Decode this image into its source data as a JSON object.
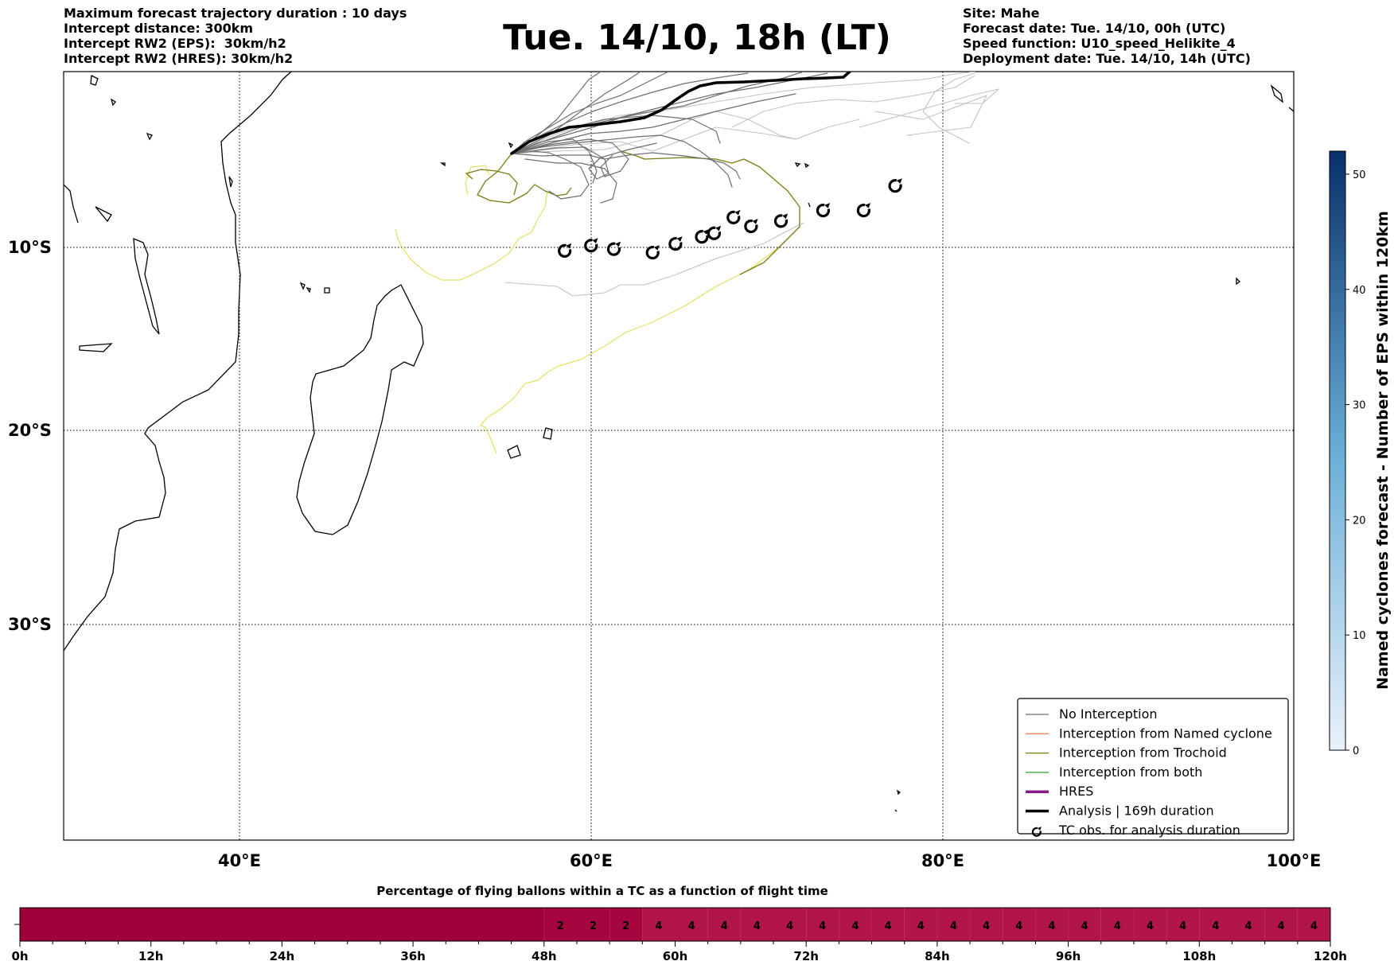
{
  "header_left": {
    "line1": "Maximum forecast trajectory duration : 10 days",
    "line2": "Intercept distance: 300km",
    "line3": "Intercept RW2 (EPS):  30km/h2",
    "line4": "Intercept RW2 (HRES): 30km/h2"
  },
  "title": "Tue. 14/10, 18h (LT)",
  "header_right": {
    "site": "Site: Mahe",
    "forecast_date": "Forecast date: Tue. 14/10, 00h (UTC)",
    "speed_function": "Speed function: U10_speed_Helikite_4",
    "deployment_date": "Deployment date: Tue. 14/10, 14h (UTC)"
  },
  "map": {
    "lon_labels": [
      "40°E",
      "60°E",
      "80°E",
      "100°E"
    ],
    "lat_labels": [
      "10°S",
      "20°S",
      "30°S"
    ],
    "colors": {
      "no_interception": "#6e6e6e",
      "eps_faint": "#c2c2c2",
      "named_cyclone": "#ff6a33",
      "trochoid": "#7a7a12",
      "trochoid_faint": "#e6e060",
      "both": "#2ca02c",
      "hres": "#8b1a8b",
      "analysis": "#000000"
    }
  },
  "tc_obs": [
    {
      "lon": 58.5,
      "lat": -10.2
    },
    {
      "lon": 60.0,
      "lat": -9.9
    },
    {
      "lon": 61.3,
      "lat": -10.1
    },
    {
      "lon": 63.5,
      "lat": -10.3
    },
    {
      "lon": 64.8,
      "lat": -9.8
    },
    {
      "lon": 66.3,
      "lat": -9.4
    },
    {
      "lon": 67.0,
      "lat": -9.2
    },
    {
      "lon": 68.1,
      "lat": -8.3
    },
    {
      "lon": 69.1,
      "lat": -8.8
    },
    {
      "lon": 70.8,
      "lat": -8.5
    },
    {
      "lon": 73.2,
      "lat": -7.9
    },
    {
      "lon": 75.5,
      "lat": -7.9
    },
    {
      "lon": 77.3,
      "lat": -6.5
    }
  ],
  "legend": {
    "items": [
      {
        "label": "No Interception",
        "kind": "line",
        "color": "#6e6e6e",
        "width": 1.2
      },
      {
        "label": "Interception from Named cyclone",
        "kind": "line",
        "color": "#ff6a33",
        "width": 1.2
      },
      {
        "label": "Interception from Trochoid",
        "kind": "line",
        "color": "#7a7a12",
        "width": 1.2
      },
      {
        "label": "Interception from both",
        "kind": "line",
        "color": "#2ca02c",
        "width": 1.2
      },
      {
        "label": "HRES",
        "kind": "line",
        "color": "#8b1a8b",
        "width": 3.5
      },
      {
        "label": "Analysis | 169h duration",
        "kind": "line",
        "color": "#000000",
        "width": 3.5
      },
      {
        "label": "TC obs. for analysis duration",
        "kind": "marker",
        "color": "#000000",
        "width": 1
      }
    ]
  },
  "colorbar": {
    "label": "Named cyclones forecast - Number of EPS within 120km",
    "min": 0,
    "max": 52,
    "ticks": [
      0,
      10,
      20,
      30,
      40,
      50
    ],
    "color_low": "#e9f1fb",
    "color_high": "#08306b"
  },
  "timeline": {
    "title": "Percentage of flying ballons within a TC as a function of flight time",
    "hours_max": 120,
    "tick_labels": [
      "0h",
      "12h",
      "24h",
      "36h",
      "48h",
      "60h",
      "72h",
      "84h",
      "96h",
      "108h",
      "120h"
    ],
    "segments": [
      {
        "start": 0,
        "end": 48,
        "value": "",
        "color": "#9e003a"
      },
      {
        "start": 48,
        "end": 51,
        "value": "2",
        "color": "#a5063f"
      },
      {
        "start": 51,
        "end": 54,
        "value": "2",
        "color": "#a5063f"
      },
      {
        "start": 54,
        "end": 57,
        "value": "2",
        "color": "#a5063f"
      },
      {
        "start": 57,
        "end": 60,
        "value": "4",
        "color": "#b1154a"
      },
      {
        "start": 60,
        "end": 63,
        "value": "4",
        "color": "#b1154a"
      },
      {
        "start": 63,
        "end": 66,
        "value": "4",
        "color": "#b1154a"
      },
      {
        "start": 66,
        "end": 69,
        "value": "4",
        "color": "#b1154a"
      },
      {
        "start": 69,
        "end": 72,
        "value": "4",
        "color": "#b1154a"
      },
      {
        "start": 72,
        "end": 75,
        "value": "4",
        "color": "#b1154a"
      },
      {
        "start": 75,
        "end": 78,
        "value": "4",
        "color": "#b1154a"
      },
      {
        "start": 78,
        "end": 81,
        "value": "4",
        "color": "#b1154a"
      },
      {
        "start": 81,
        "end": 84,
        "value": "4",
        "color": "#b1154a"
      },
      {
        "start": 84,
        "end": 87,
        "value": "4",
        "color": "#b1154a"
      },
      {
        "start": 87,
        "end": 90,
        "value": "4",
        "color": "#b1154a"
      },
      {
        "start": 90,
        "end": 93,
        "value": "4",
        "color": "#b1154a"
      },
      {
        "start": 93,
        "end": 96,
        "value": "4",
        "color": "#b1154a"
      },
      {
        "start": 96,
        "end": 99,
        "value": "4",
        "color": "#b1154a"
      },
      {
        "start": 99,
        "end": 102,
        "value": "4",
        "color": "#b1154a"
      },
      {
        "start": 102,
        "end": 105,
        "value": "4",
        "color": "#b1154a"
      },
      {
        "start": 105,
        "end": 108,
        "value": "4",
        "color": "#b1154a"
      },
      {
        "start": 108,
        "end": 111,
        "value": "4",
        "color": "#b1154a"
      },
      {
        "start": 111,
        "end": 114,
        "value": "4",
        "color": "#b1154a"
      },
      {
        "start": 114,
        "end": 117,
        "value": "4",
        "color": "#b1154a"
      },
      {
        "start": 117,
        "end": 120,
        "value": "4",
        "color": "#b1154a"
      }
    ]
  }
}
